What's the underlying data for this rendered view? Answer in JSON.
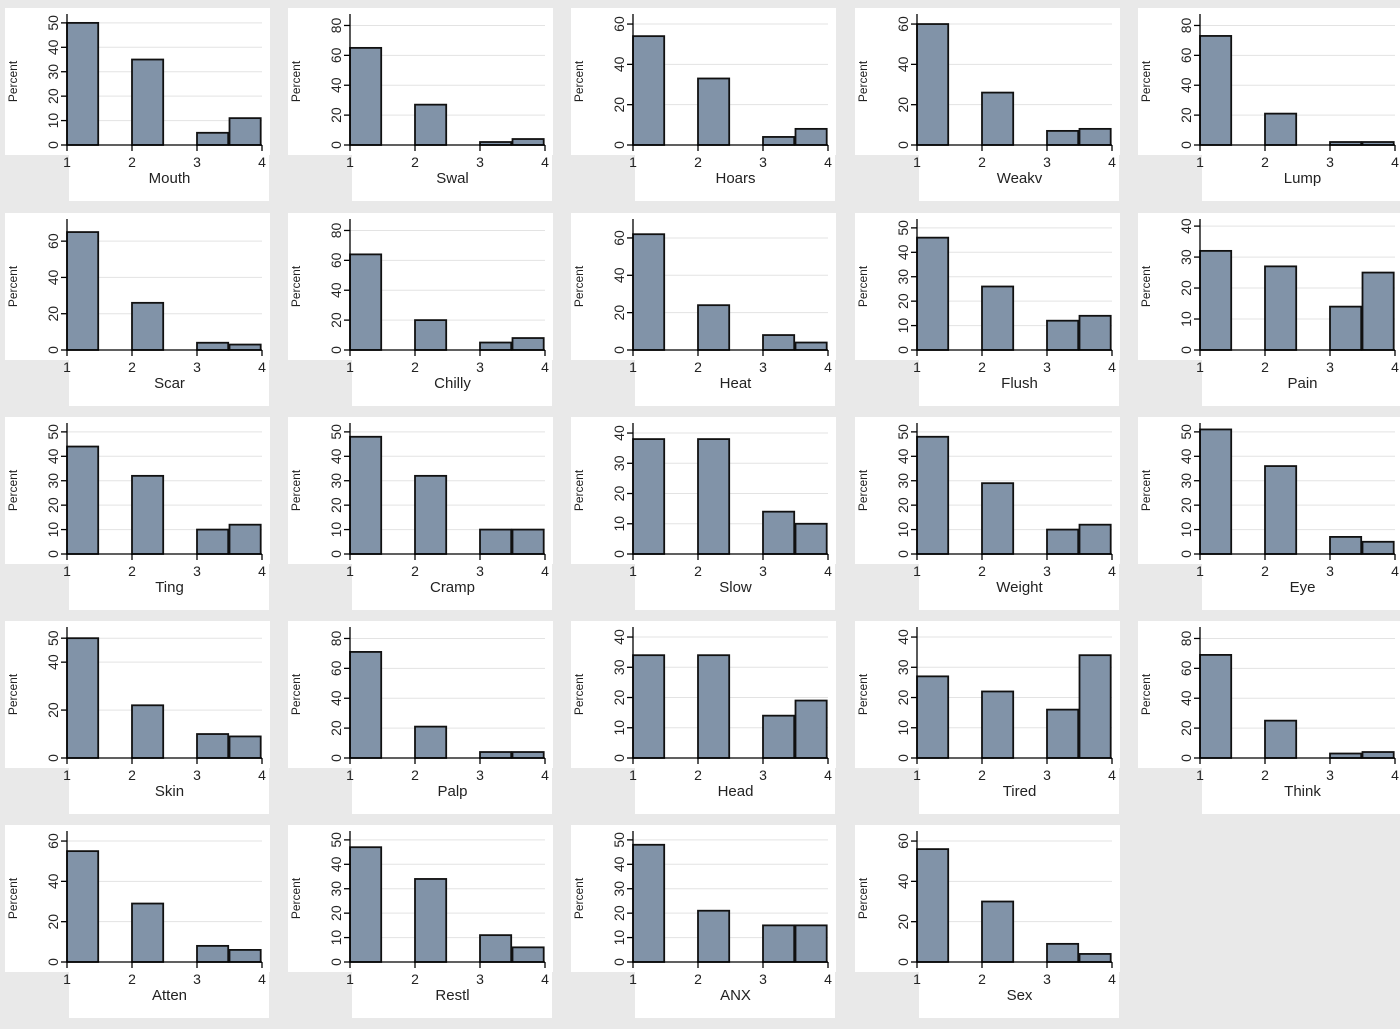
{
  "y_axis_label": "Percent",
  "chart_data": [
    {
      "type": "bar",
      "xlabel": "Mouth",
      "ylabel": "Percent",
      "x": [
        1,
        2,
        3,
        3.5
      ],
      "values": [
        50,
        35,
        5,
        11
      ],
      "ylim": [
        0,
        52
      ],
      "yticks": [
        0,
        10,
        20,
        30,
        40,
        50
      ],
      "xticks": [
        1,
        2,
        3,
        4
      ]
    },
    {
      "type": "bar",
      "xlabel": "Swal",
      "ylabel": "Percent",
      "x": [
        1,
        2,
        3,
        3.5
      ],
      "values": [
        65,
        27,
        2,
        4
      ],
      "ylim": [
        0,
        85
      ],
      "yticks": [
        0,
        20,
        40,
        60,
        80
      ],
      "xticks": [
        1,
        2,
        3,
        4
      ]
    },
    {
      "type": "bar",
      "xlabel": "Hoars",
      "ylabel": "Percent",
      "x": [
        1,
        2,
        3,
        3.5
      ],
      "values": [
        54,
        33,
        4,
        8
      ],
      "ylim": [
        0,
        63
      ],
      "yticks": [
        0,
        20,
        40,
        60
      ],
      "xticks": [
        1,
        2,
        3,
        4
      ]
    },
    {
      "type": "bar",
      "xlabel": "Weakv",
      "ylabel": "Percent",
      "x": [
        1,
        2,
        3,
        3.5
      ],
      "values": [
        60,
        26,
        7,
        8
      ],
      "ylim": [
        0,
        63
      ],
      "yticks": [
        0,
        20,
        40,
        60
      ],
      "xticks": [
        1,
        2,
        3,
        4
      ]
    },
    {
      "type": "bar",
      "xlabel": "Lump",
      "ylabel": "Percent",
      "x": [
        1,
        2,
        3,
        3.5
      ],
      "values": [
        73,
        21,
        2,
        2
      ],
      "ylim": [
        0,
        85
      ],
      "yticks": [
        0,
        20,
        40,
        60,
        80
      ],
      "xticks": [
        1,
        2,
        3,
        4
      ]
    },
    {
      "type": "bar",
      "xlabel": "Scar",
      "ylabel": "Percent",
      "x": [
        1,
        2,
        3,
        3.5
      ],
      "values": [
        65,
        26,
        4,
        3
      ],
      "ylim": [
        0,
        70
      ],
      "yticks": [
        0,
        20,
        40,
        60
      ],
      "xticks": [
        1,
        2,
        3,
        4
      ]
    },
    {
      "type": "bar",
      "xlabel": "Chilly",
      "ylabel": "Percent",
      "x": [
        1,
        2,
        3,
        3.5
      ],
      "values": [
        64,
        20,
        5,
        8
      ],
      "ylim": [
        0,
        85
      ],
      "yticks": [
        0,
        20,
        40,
        60,
        80
      ],
      "xticks": [
        1,
        2,
        3,
        4
      ]
    },
    {
      "type": "bar",
      "xlabel": "Heat",
      "ylabel": "Percent",
      "x": [
        1,
        2,
        3,
        3.5
      ],
      "values": [
        62,
        24,
        8,
        4
      ],
      "ylim": [
        0,
        68
      ],
      "yticks": [
        0,
        20,
        40,
        60
      ],
      "xticks": [
        1,
        2,
        3,
        4
      ]
    },
    {
      "type": "bar",
      "xlabel": "Flush",
      "ylabel": "Percent",
      "x": [
        1,
        2,
        3,
        3.5
      ],
      "values": [
        46,
        26,
        12,
        14
      ],
      "ylim": [
        0,
        52
      ],
      "yticks": [
        0,
        10,
        20,
        30,
        40,
        50
      ],
      "xticks": [
        1,
        2,
        3,
        4
      ]
    },
    {
      "type": "bar",
      "xlabel": "Pain",
      "ylabel": "Percent",
      "x": [
        1,
        2,
        3,
        3.5
      ],
      "values": [
        32,
        27,
        14,
        25
      ],
      "ylim": [
        0,
        41
      ],
      "yticks": [
        0,
        10,
        20,
        30,
        40
      ],
      "xticks": [
        1,
        2,
        3,
        4
      ]
    },
    {
      "type": "bar",
      "xlabel": "Ting",
      "ylabel": "Percent",
      "x": [
        1,
        2,
        3,
        3.5
      ],
      "values": [
        44,
        32,
        10,
        12
      ],
      "ylim": [
        0,
        52
      ],
      "yticks": [
        0,
        10,
        20,
        30,
        40,
        50
      ],
      "xticks": [
        1,
        2,
        3,
        4
      ]
    },
    {
      "type": "bar",
      "xlabel": "Cramp",
      "ylabel": "Percent",
      "x": [
        1,
        2,
        3,
        3.5
      ],
      "values": [
        48,
        32,
        10,
        10
      ],
      "ylim": [
        0,
        52
      ],
      "yticks": [
        0,
        10,
        20,
        30,
        40,
        50
      ],
      "xticks": [
        1,
        2,
        3,
        4
      ]
    },
    {
      "type": "bar",
      "xlabel": "Slow",
      "ylabel": "Percent",
      "x": [
        1,
        2,
        3,
        3.5
      ],
      "values": [
        38,
        38,
        14,
        10
      ],
      "ylim": [
        0,
        42
      ],
      "yticks": [
        0,
        10,
        20,
        30,
        40
      ],
      "xticks": [
        1,
        2,
        3,
        4
      ]
    },
    {
      "type": "bar",
      "xlabel": "Weight",
      "ylabel": "Percent",
      "x": [
        1,
        2,
        3,
        3.5
      ],
      "values": [
        48,
        29,
        10,
        12
      ],
      "ylim": [
        0,
        52
      ],
      "yticks": [
        0,
        10,
        20,
        30,
        40,
        50
      ],
      "xticks": [
        1,
        2,
        3,
        4
      ]
    },
    {
      "type": "bar",
      "xlabel": "Eye",
      "ylabel": "Percent",
      "x": [
        1,
        2,
        3,
        3.5
      ],
      "values": [
        51,
        36,
        7,
        5
      ],
      "ylim": [
        0,
        52
      ],
      "yticks": [
        0,
        10,
        20,
        30,
        40,
        50
      ],
      "xticks": [
        1,
        2,
        3,
        4
      ]
    },
    {
      "type": "bar",
      "xlabel": "Skin",
      "ylabel": "Percent",
      "x": [
        1,
        2,
        3,
        3.5
      ],
      "values": [
        50,
        22,
        10,
        9
      ],
      "ylim": [
        0,
        53
      ],
      "yticks": [
        0,
        20,
        40,
        50
      ],
      "xticks": [
        1,
        2,
        3,
        4
      ]
    },
    {
      "type": "bar",
      "xlabel": "Palp",
      "ylabel": "Percent",
      "x": [
        1,
        2,
        3,
        3.5
      ],
      "values": [
        71,
        21,
        4,
        4
      ],
      "ylim": [
        0,
        85
      ],
      "yticks": [
        0,
        20,
        40,
        60,
        80
      ],
      "xticks": [
        1,
        2,
        3,
        4
      ]
    },
    {
      "type": "bar",
      "xlabel": "Head",
      "ylabel": "Percent",
      "x": [
        1,
        2,
        3,
        3.5
      ],
      "values": [
        34,
        34,
        14,
        19
      ],
      "ylim": [
        0,
        42
      ],
      "yticks": [
        0,
        10,
        20,
        30,
        40
      ],
      "xticks": [
        1,
        2,
        3,
        4
      ]
    },
    {
      "type": "bar",
      "xlabel": "Tired",
      "ylabel": "Percent",
      "x": [
        1,
        2,
        3,
        3.5
      ],
      "values": [
        27,
        22,
        16,
        34
      ],
      "ylim": [
        0,
        42
      ],
      "yticks": [
        0,
        10,
        20,
        30,
        40
      ],
      "xticks": [
        1,
        2,
        3,
        4
      ]
    },
    {
      "type": "bar",
      "xlabel": "Think",
      "ylabel": "Percent",
      "x": [
        1,
        2,
        3,
        3.5
      ],
      "values": [
        69,
        25,
        3,
        4
      ],
      "ylim": [
        0,
        85
      ],
      "yticks": [
        0,
        20,
        40,
        60,
        80
      ],
      "xticks": [
        1,
        2,
        3,
        4
      ]
    },
    {
      "type": "bar",
      "xlabel": "Atten",
      "ylabel": "Percent",
      "x": [
        1,
        2,
        3,
        3.5
      ],
      "values": [
        55,
        29,
        8,
        6
      ],
      "ylim": [
        0,
        63
      ],
      "yticks": [
        0,
        20,
        40,
        60
      ],
      "xticks": [
        1,
        2,
        3,
        4
      ]
    },
    {
      "type": "bar",
      "xlabel": "Restl",
      "ylabel": "Percent",
      "x": [
        1,
        2,
        3,
        3.5
      ],
      "values": [
        47,
        34,
        11,
        6
      ],
      "ylim": [
        0,
        52
      ],
      "yticks": [
        0,
        10,
        20,
        30,
        40,
        50
      ],
      "xticks": [
        1,
        2,
        3,
        4
      ]
    },
    {
      "type": "bar",
      "xlabel": "ANX",
      "ylabel": "Percent",
      "x": [
        1,
        2,
        3,
        3.5
      ],
      "values": [
        48,
        21,
        15,
        15
      ],
      "ylim": [
        0,
        52
      ],
      "yticks": [
        0,
        10,
        20,
        30,
        40,
        50
      ],
      "xticks": [
        1,
        2,
        3,
        4
      ]
    },
    {
      "type": "bar",
      "xlabel": "Sex",
      "ylabel": "Percent",
      "x": [
        1,
        2,
        3,
        3.5
      ],
      "values": [
        56,
        30,
        9,
        4
      ],
      "ylim": [
        0,
        63
      ],
      "yticks": [
        0,
        20,
        40,
        60
      ],
      "xticks": [
        1,
        2,
        3,
        4
      ]
    }
  ]
}
